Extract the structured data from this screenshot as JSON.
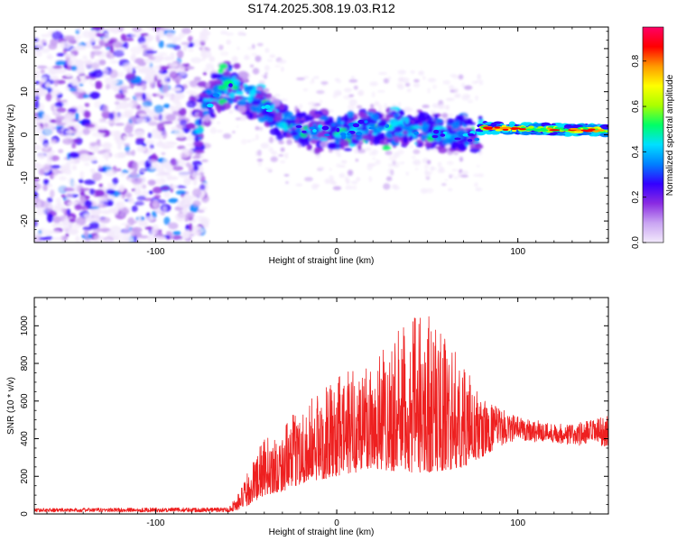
{
  "title": "S174.2025.308.19.03.R12",
  "chart_data": [
    {
      "type": "heatmap",
      "panel": "top",
      "xlabel": "Height of straight line (km)",
      "ylabel": "Frequency (Hz)",
      "xlim": [
        -167,
        150
      ],
      "ylim": [
        -25,
        25
      ],
      "xticks": [
        -100,
        0,
        100
      ],
      "yticks": [
        -20,
        -10,
        0,
        10,
        20
      ],
      "colorbar": {
        "label": "Normalized spectral amplitude",
        "range": [
          0.0,
          0.95
        ],
        "ticks": [
          0.0,
          0.2,
          0.4,
          0.6,
          0.8
        ],
        "tick_labels": [
          "0.0",
          "0.2",
          "0.4",
          "0.6",
          "0.8"
        ],
        "colors": [
          "#f3eafc",
          "#c9a4f2",
          "#8a2be2",
          "#3300ff",
          "#0080ff",
          "#00e0ff",
          "#00ff66",
          "#aaff00",
          "#ffff00",
          "#ff9900",
          "#ff0000",
          "#ff0066"
        ]
      },
      "ridge": [
        {
          "x": -75,
          "freq": 6
        },
        {
          "x": -60,
          "freq": 12
        },
        {
          "x": -45,
          "freq": 8
        },
        {
          "x": -30,
          "freq": 3
        },
        {
          "x": -15,
          "freq": 1
        },
        {
          "x": 0,
          "freq": 0.5
        },
        {
          "x": 20,
          "freq": 2
        },
        {
          "x": 40,
          "freq": 1.5
        },
        {
          "x": 60,
          "freq": 0
        },
        {
          "x": 78,
          "freq": 0
        },
        {
          "x": 80,
          "freq": 1.6
        },
        {
          "x": 150,
          "freq": 1.0
        }
      ]
    },
    {
      "type": "line",
      "panel": "bottom",
      "xlabel": "Height of straight line (km)",
      "ylabel": "SNR (10 * v/v)",
      "xlim": [
        -167,
        150
      ],
      "ylim": [
        0,
        1150
      ],
      "xticks": [
        -100,
        0,
        100
      ],
      "yticks": [
        0,
        200,
        400,
        600,
        800,
        1000
      ],
      "series": [
        {
          "name": "SNR",
          "color": "#ee2020",
          "envelope_x": [
            -167,
            -60,
            -55,
            -50,
            -45,
            -40,
            -30,
            -20,
            -10,
            0,
            10,
            20,
            30,
            40,
            50,
            60,
            70,
            80,
            90,
            100,
            110,
            120,
            130,
            150
          ],
          "envelope_low": [
            10,
            10,
            20,
            40,
            70,
            100,
            120,
            160,
            180,
            200,
            220,
            240,
            230,
            220,
            220,
            230,
            250,
            300,
            360,
            390,
            380,
            380,
            360,
            360
          ],
          "envelope_high": [
            30,
            35,
            100,
            200,
            320,
            400,
            450,
            580,
            650,
            720,
            800,
            880,
            950,
            1020,
            1100,
            950,
            800,
            620,
            560,
            520,
            500,
            480,
            480,
            520
          ]
        }
      ]
    }
  ]
}
